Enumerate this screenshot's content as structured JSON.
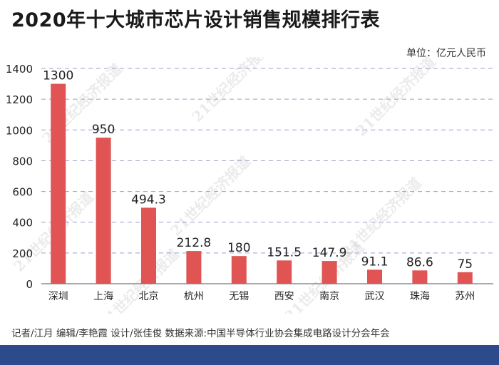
{
  "title": "2020年十大城市芯片设计销售规模排行表",
  "unit_label": "单位：亿元人民币",
  "footer": "记者/江月  编辑/李艳霞  设计/张佳俊  数据来源:中国半导体行业协会集成电路设计分会年会",
  "watermark": "21世纪经济报道",
  "colors": {
    "bar": "#e05454",
    "bottom_bar": "#2d4a8c",
    "grid": "#9aa0c8"
  },
  "chart_data": {
    "type": "bar",
    "categories": [
      "深圳",
      "上海",
      "北京",
      "杭州",
      "无锡",
      "西安",
      "南京",
      "武汉",
      "珠海",
      "苏州"
    ],
    "values": [
      1300,
      950,
      494.3,
      212.8,
      180,
      151.5,
      147.9,
      91.1,
      86.6,
      75
    ],
    "value_labels": [
      "1300",
      "950",
      "494.3",
      "212.8",
      "180",
      "151.5",
      "147.9",
      "91.1",
      "86.6",
      "75"
    ],
    "yticks": [
      0,
      200,
      400,
      600,
      800,
      1000,
      1200,
      1400
    ],
    "ylim": [
      0,
      1400
    ],
    "grid": true
  }
}
